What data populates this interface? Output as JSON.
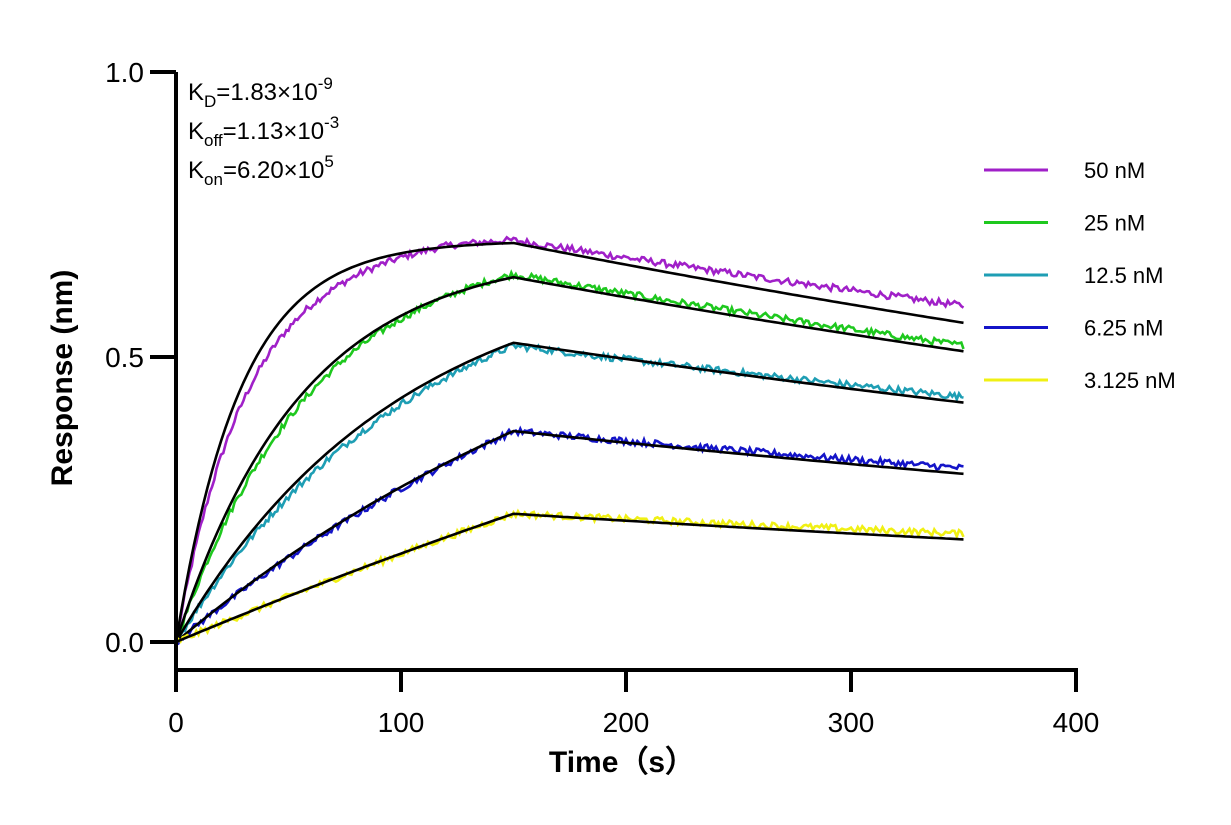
{
  "chart_data": {
    "type": "line",
    "title": "",
    "xlabel": "Time（s）",
    "ylabel": "Response (nm)",
    "xlim": [
      0,
      400
    ],
    "ylim": [
      -0.05,
      1.0
    ],
    "x_ticks": [
      0,
      100,
      200,
      300,
      400
    ],
    "x_tick_labels": [
      "0",
      "100",
      "200",
      "300",
      "400"
    ],
    "y_ticks": [
      0,
      0.5,
      1.0
    ],
    "y_tick_labels": [
      "0.0",
      "0.5",
      "1.0"
    ],
    "grid": false,
    "legend_position": "right",
    "association_end_s": 150,
    "dissociation_end_s": 350,
    "fit_line_color": "#000000",
    "kinetics": [
      {
        "name": "K",
        "sub": "D",
        "value": "=1.83×10",
        "exp": "-9"
      },
      {
        "name": "K",
        "sub": "off",
        "value": "=1.13×10",
        "exp": "-3"
      },
      {
        "name": "K",
        "sub": "on",
        "value": "=6.20×10",
        "exp": "5"
      }
    ],
    "series": [
      {
        "name": "50 nM",
        "color": "#a020c8",
        "peak": 0.705,
        "end": 0.59,
        "fit_peak": 0.7,
        "fit_end": 0.56,
        "assoc_tau": 32
      },
      {
        "name": "25 nM",
        "color": "#1ec81e",
        "peak": 0.645,
        "end": 0.52,
        "fit_peak": 0.64,
        "fit_end": 0.51,
        "assoc_tau": 62
      },
      {
        "name": "12.5 nM",
        "color": "#1e9eb4",
        "peak": 0.52,
        "end": 0.43,
        "fit_peak": 0.525,
        "fit_end": 0.42,
        "assoc_tau": 110
      },
      {
        "name": "6.25 nM",
        "color": "#1414c8",
        "peak": 0.37,
        "end": 0.305,
        "fit_peak": 0.37,
        "fit_end": 0.295,
        "assoc_tau": 260
      },
      {
        "name": "3.125 nM",
        "color": "#f0f014",
        "peak": 0.225,
        "end": 0.19,
        "fit_peak": 0.225,
        "fit_end": 0.18,
        "assoc_tau": 800
      }
    ]
  }
}
